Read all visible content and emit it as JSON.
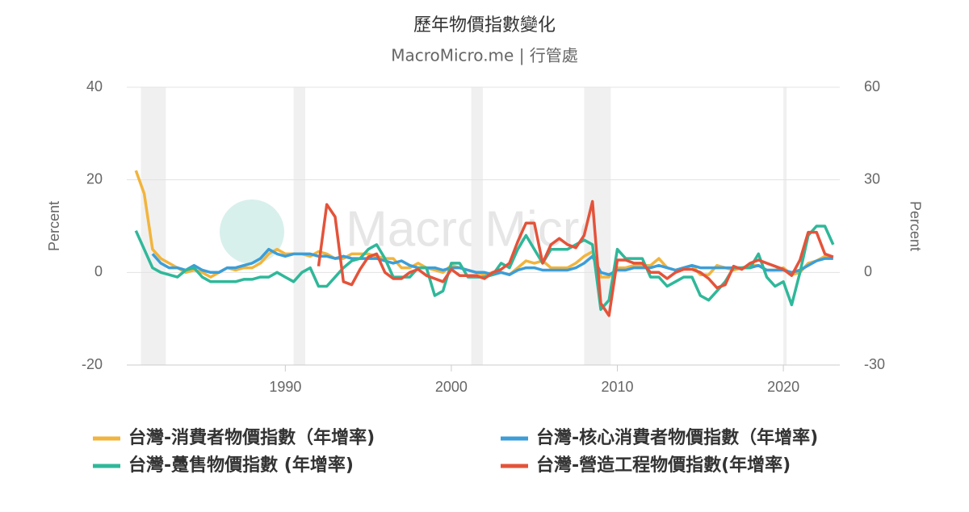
{
  "chart_data": {
    "type": "line",
    "title": "歷年物價指數變化",
    "subtitle": "MacroMicro.me | 行管處",
    "watermark": "MacroMicro",
    "y_label": "Percent",
    "y2_label": "Percent",
    "xlim": [
      1980.45,
      2023.4
    ],
    "xticks": [
      1990,
      2000,
      2010,
      2020
    ],
    "ylim": [
      -20,
      40
    ],
    "yticks": [
      -20,
      0,
      20,
      40
    ],
    "y2lim": [
      -30,
      60
    ],
    "y2ticks": [
      -30,
      0,
      30,
      60
    ],
    "grid": true,
    "legend": "bottom",
    "shaded_periods": [
      [
        1981.3,
        1982.8
      ],
      [
        1990.5,
        1991.2
      ],
      [
        2001.2,
        2001.9
      ],
      [
        2008.0,
        2009.6
      ],
      [
        2020.0,
        2020.2
      ]
    ],
    "x": [
      1981,
      1981.5,
      1982,
      1982.5,
      1983,
      1983.5,
      1984,
      1984.5,
      1985,
      1985.5,
      1986,
      1986.5,
      1987,
      1987.5,
      1988,
      1988.5,
      1989,
      1989.5,
      1990,
      1990.5,
      1991,
      1991.5,
      1992,
      1992.5,
      1993,
      1993.5,
      1994,
      1994.5,
      1995,
      1995.5,
      1996,
      1996.5,
      1997,
      1997.5,
      1998,
      1998.5,
      1999,
      1999.5,
      2000,
      2000.5,
      2001,
      2001.5,
      2002,
      2002.5,
      2003,
      2003.5,
      2004,
      2004.5,
      2005,
      2005.5,
      2006,
      2006.5,
      2007,
      2007.5,
      2008,
      2008.5,
      2009,
      2009.5,
      2010,
      2010.5,
      2011,
      2011.5,
      2012,
      2012.5,
      2013,
      2013.5,
      2014,
      2014.5,
      2015,
      2015.5,
      2016,
      2016.5,
      2017,
      2017.5,
      2018,
      2018.5,
      2019,
      2019.5,
      2020,
      2020.5,
      2021,
      2021.5,
      2022,
      2022.5,
      2023
    ],
    "series": [
      {
        "name": "台灣-消費者物價指數（年增率)",
        "color": "#f2b43c",
        "values": [
          22,
          17,
          5,
          3,
          2,
          1,
          0,
          0.5,
          0,
          -1,
          0,
          1,
          0.5,
          1,
          1,
          2,
          4,
          5,
          4,
          4,
          4,
          3.5,
          4.5,
          4,
          3,
          3,
          4,
          4,
          4,
          3.5,
          3,
          3,
          1,
          1,
          2,
          1,
          0.5,
          0,
          1.5,
          1,
          0.5,
          0,
          -0.5,
          0,
          0,
          -0.5,
          1,
          2.5,
          2,
          2.5,
          1,
          1,
          1,
          2,
          3.5,
          4.5,
          -1,
          -1,
          1,
          1,
          1.5,
          1.5,
          1.5,
          3,
          1,
          0.5,
          1,
          1.5,
          -0.5,
          -0.5,
          1.5,
          1,
          0.5,
          1,
          1.5,
          1.5,
          0.5,
          0.5,
          1,
          -0.5,
          0,
          2,
          2.5,
          3.5,
          3
        ]
      },
      {
        "name": "台灣-核心消費者物價指數（年增率)",
        "color": "#3b9ed8",
        "values": [
          null,
          null,
          4,
          2,
          1,
          1,
          0.5,
          1.5,
          0.5,
          0,
          0,
          1,
          1,
          1.5,
          2,
          3,
          5,
          4,
          3.5,
          4,
          4,
          4,
          3.5,
          3.5,
          3,
          3.5,
          3,
          3,
          3,
          3,
          2.5,
          2,
          2.5,
          1.5,
          1,
          1,
          1,
          0.5,
          1,
          1,
          0.5,
          0,
          0,
          -0.5,
          0,
          -0.5,
          0.5,
          1,
          1,
          0.5,
          0.5,
          0.5,
          0.5,
          1,
          2,
          3.5,
          0,
          -0.5,
          0.5,
          0.5,
          1,
          1,
          1,
          1.5,
          1,
          0.5,
          1,
          1.5,
          1,
          1,
          1,
          1,
          1,
          1,
          1,
          1.5,
          0.5,
          0.5,
          0.5,
          0,
          0.5,
          1.5,
          2.5,
          3,
          3
        ]
      },
      {
        "name": "台灣-躉售物價指數 (年增率)",
        "color": "#2fb89a",
        "values": [
          9,
          5,
          1,
          0,
          -0.5,
          -1,
          0.5,
          1,
          -1,
          -2,
          -2,
          -2,
          -2,
          -1.5,
          -1.5,
          -1,
          -1,
          0,
          -1,
          -2,
          0,
          1,
          -3,
          -3,
          -1,
          1,
          2.5,
          3,
          5,
          6,
          3,
          -1,
          -1,
          -1,
          1,
          1,
          -5,
          -4,
          2,
          2,
          -1,
          -1,
          -1,
          -0.5,
          2,
          1,
          5,
          8,
          5,
          2,
          5,
          5,
          5,
          6,
          7,
          6,
          -8,
          -6,
          5,
          3,
          3,
          3,
          -1,
          -1,
          -3,
          -2,
          -1,
          -1,
          -5,
          -6,
          -4,
          -2,
          1,
          1,
          1,
          4,
          -1,
          -3,
          -2,
          -7,
          0,
          8,
          10,
          10,
          6
        ]
      },
      {
        "name": "台灣-營造工程物價指數(年增率)",
        "color": "#e4533a",
        "axis": "y2",
        "values": [
          null,
          null,
          null,
          null,
          null,
          null,
          null,
          null,
          null,
          null,
          null,
          null,
          null,
          null,
          null,
          null,
          null,
          null,
          null,
          null,
          null,
          null,
          2,
          22,
          18,
          -3,
          -4,
          1,
          5,
          6,
          0,
          -2,
          -2,
          0,
          1,
          -1,
          -2,
          -3,
          1,
          -1,
          -1,
          -1,
          -2,
          0,
          1,
          3,
          10,
          16,
          16,
          3,
          9,
          11,
          9,
          8,
          12,
          23,
          -10,
          -14,
          4,
          4,
          3,
          3,
          0,
          0,
          -2,
          0,
          1,
          1,
          0,
          -2,
          -5,
          -4,
          2,
          1,
          3,
          4,
          3,
          2,
          1,
          -1,
          4,
          13,
          13,
          6,
          5
        ]
      }
    ]
  }
}
